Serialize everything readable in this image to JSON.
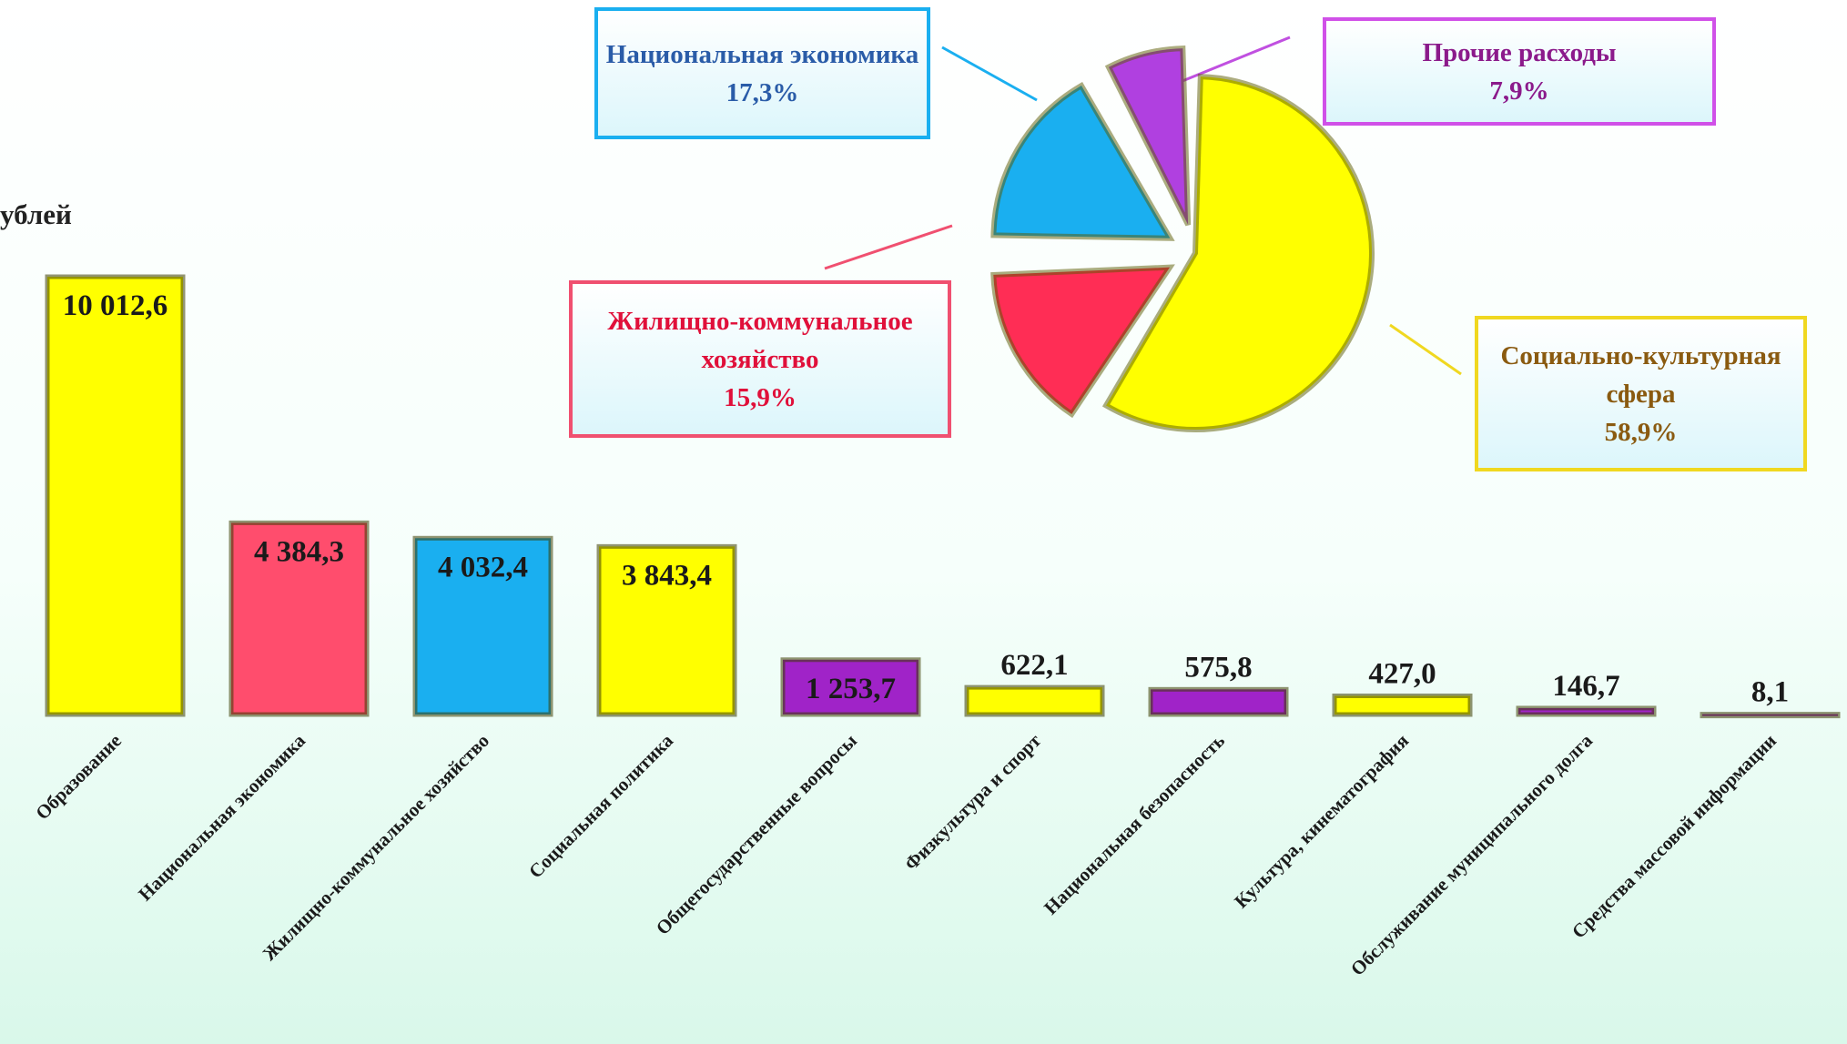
{
  "unit_text": "ублей",
  "chart_data": [
    {
      "type": "bar",
      "categories": [
        "Образование",
        "Национальная экономика",
        "Жилищно-коммунальное хозяйство",
        "Социальная политика",
        "Общегосударственные вопросы",
        "Физкультура и спорт",
        "Национальная безопасность",
        "Культура, кинематография",
        "Обслуживание муниципального долга",
        "Средства массовой информации"
      ],
      "values": [
        10012.6,
        4384.3,
        4032.4,
        3843.4,
        1253.7,
        622.1,
        575.8,
        427.0,
        146.7,
        8.1
      ],
      "value_labels": [
        "10 012,6",
        "4 384,3",
        "4 032,4",
        "3 843,4",
        "1 253,7",
        "622,1",
        "575,8",
        "427,0",
        "146,7",
        "8,1"
      ],
      "colors": [
        "#ffff00",
        "#ff4d6d",
        "#1aaff0",
        "#ffff00",
        "#a023c8",
        "#ffff00",
        "#a023c8",
        "#ffff00",
        "#a023c8",
        "#a023c8"
      ]
    },
    {
      "type": "pie",
      "categories": [
        "Социально-культурная сфера",
        "Жилищно-коммунальное хозяйство",
        "Национальная экономика",
        "Прочие расходы"
      ],
      "values": [
        58.9,
        15.9,
        17.3,
        7.9
      ],
      "value_labels": [
        "58,9%",
        "15,9%",
        "17,3%",
        "7,9%"
      ],
      "colors": [
        "#ffff00",
        "#ff2d55",
        "#1aaff0",
        "#b040e0"
      ]
    }
  ]
}
